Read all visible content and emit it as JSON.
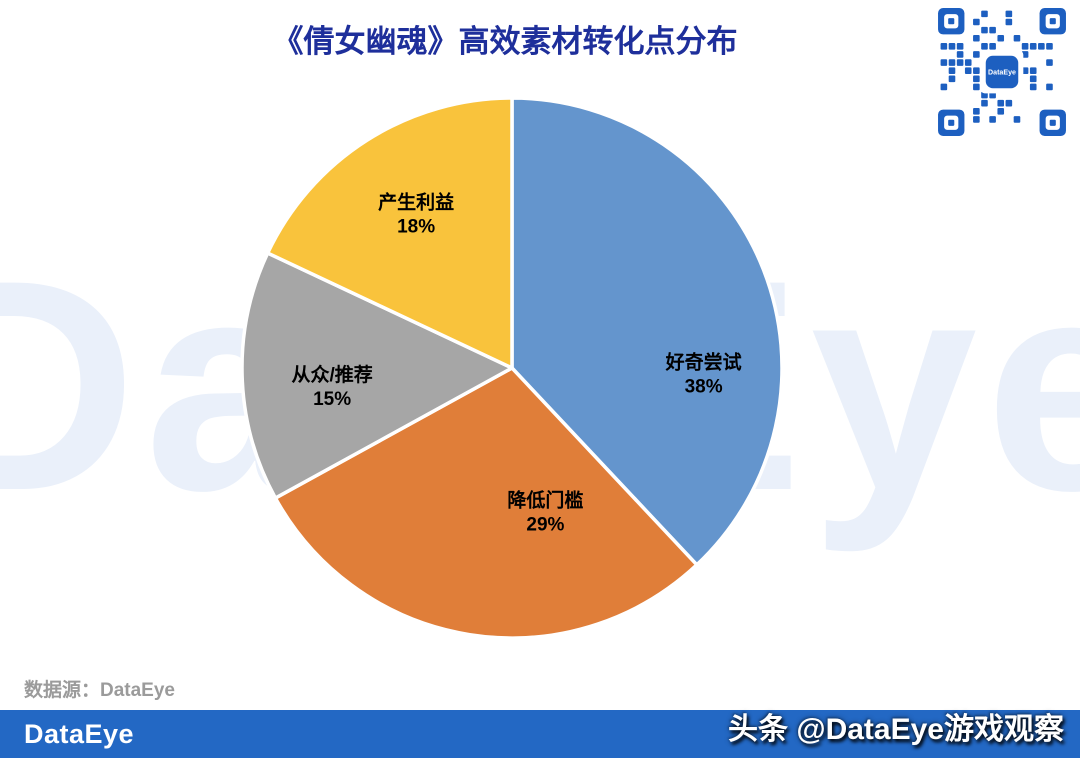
{
  "header": {
    "title": "《倩女幽魂》高效素材转化点分布"
  },
  "watermark": {
    "text": "DataEye"
  },
  "qr": {
    "center_label": "DataEye"
  },
  "chart_data": {
    "type": "pie",
    "title": "《倩女幽魂》高效素材转化点分布",
    "start_angle_deg": 0,
    "direction": "clockwise",
    "legend": "none",
    "labels_inside": true,
    "slices": [
      {
        "label": "好奇尝试",
        "value": 38,
        "percent_label": "38%",
        "color": "#6495CD",
        "label_angle": 92,
        "label_r": 0.71
      },
      {
        "label": "降低门槛",
        "value": 29,
        "percent_label": "29%",
        "color": "#E07E39",
        "label_angle": 167,
        "label_r": 0.55
      },
      {
        "label": "从众/推荐",
        "value": 15,
        "percent_label": "15%",
        "color": "#A6A6A6",
        "label_angle": 264,
        "label_r": 0.67
      },
      {
        "label": "产生利益",
        "value": 18,
        "percent_label": "18%",
        "color": "#F9C33C",
        "label_angle": 328,
        "label_r": 0.67
      }
    ]
  },
  "footer": {
    "source": "数据源：DataEye",
    "brand": "DataEye",
    "watermark": "头条 @DataEye游戏观察"
  },
  "colors": {
    "title": "#1E2F9B",
    "footer_bar": "#2368C4",
    "qr": "#1D5FC0",
    "page_watermark": "#EAF0FA",
    "slice_stroke": "#FFFFFF"
  }
}
